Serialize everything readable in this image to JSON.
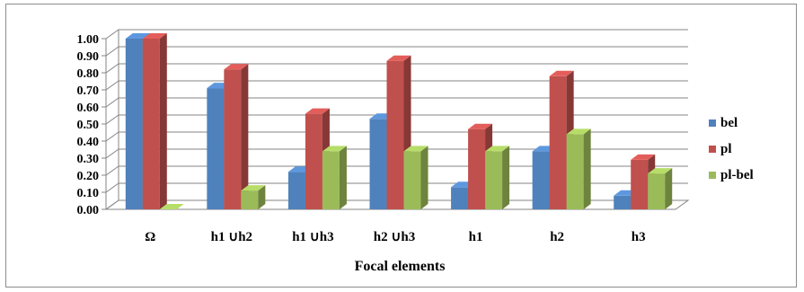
{
  "chart_data": {
    "type": "bar",
    "title": "",
    "xlabel": "Focal elements",
    "ylabel": "",
    "ylim": [
      0,
      1
    ],
    "yticks": [
      "0.00",
      "0.10",
      "0.20",
      "0.30",
      "0.40",
      "0.50",
      "0.60",
      "0.70",
      "0.80",
      "0.90",
      "1.00"
    ],
    "categories": [
      "Ω",
      "h1 ∪h2",
      "h1 ∪h3",
      "h2 ∪h3",
      "h1",
      "h2",
      "h3"
    ],
    "series": [
      {
        "name": "bel",
        "color": "#4F81BD",
        "values": [
          1.0,
          0.71,
          0.22,
          0.53,
          0.13,
          0.34,
          0.08
        ]
      },
      {
        "name": "pl",
        "color": "#C0504D",
        "values": [
          1.0,
          0.82,
          0.56,
          0.87,
          0.47,
          0.78,
          0.29
        ]
      },
      {
        "name": "pl-bel",
        "color": "#9BBB59",
        "values": [
          0.0,
          0.11,
          0.34,
          0.34,
          0.34,
          0.44,
          0.21
        ]
      }
    ],
    "legend_position": "right",
    "grid": true
  }
}
